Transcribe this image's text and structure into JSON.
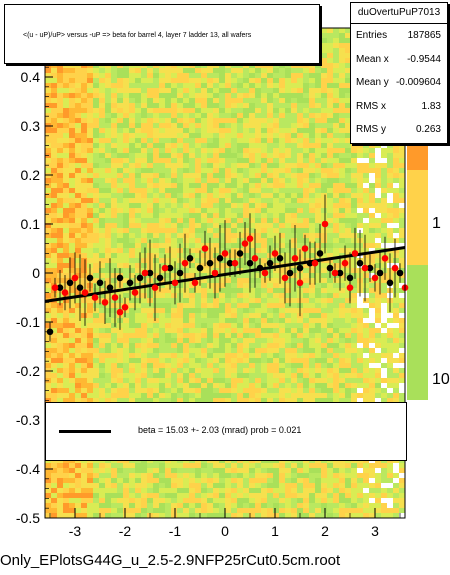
{
  "title": "<(u - uP)/uP> versus -uP => beta for barrel 4, layer 7 ladder 13, all wafers",
  "stats": {
    "name": "duOvertuPuP7013",
    "rows": [
      {
        "key": "Entries",
        "value": "187865"
      },
      {
        "key": "Mean x",
        "value": "-0.9544"
      },
      {
        "key": "Mean y",
        "value": "-0.009604"
      },
      {
        "key": "RMS x",
        "value": "1.83"
      },
      {
        "key": "RMS y",
        "value": "0.263"
      }
    ]
  },
  "legend": {
    "text": "beta =    15.03 +-  2.03 (mrad) prob = 0.021"
  },
  "footer": "Only_EPlotsG44G_u_2.5-2.9NFP25rCut0.5cm.root",
  "colors": {
    "fit_line": "#000000",
    "points_black": "#000000",
    "points_red": "#ff0000"
  },
  "chart_data": {
    "type": "scatter",
    "title": "<(u - uP)/uP> versus -uP => beta for barrel 4, layer 7 ladder 13, all wafers",
    "xlim": [
      -3.6,
      3.6
    ],
    "ylim": [
      -0.5,
      0.5
    ],
    "xticks": [
      "-3",
      "-2",
      "-1",
      "0",
      "1",
      "2",
      "3"
    ],
    "yticks": [
      "-0.5",
      "-0.4",
      "-0.3",
      "-0.2",
      "-0.1",
      "0",
      "0.1",
      "0.2",
      "0.3",
      "0.4"
    ],
    "colorbar_ticks": [
      "10",
      "1",
      "10"
    ],
    "fit_line": {
      "x": [
        -3.6,
        3.6
      ],
      "y": [
        -0.058,
        0.052
      ]
    },
    "series": [
      {
        "marker": "black",
        "points": [
          [
            -3.5,
            -0.12
          ],
          [
            -3.3,
            -0.03
          ],
          [
            -3.1,
            -0.02
          ],
          [
            -2.9,
            -0.03
          ],
          [
            -2.7,
            -0.01
          ],
          [
            -2.5,
            -0.02
          ],
          [
            -2.3,
            -0.03
          ],
          [
            -2.1,
            -0.01
          ],
          [
            -1.9,
            -0.02
          ],
          [
            -1.7,
            -0.01
          ],
          [
            -1.5,
            0.0
          ],
          [
            -1.3,
            -0.01
          ],
          [
            -1.1,
            0.01
          ],
          [
            -0.9,
            0.0
          ],
          [
            -0.7,
            0.03
          ],
          [
            -0.5,
            0.01
          ],
          [
            -0.3,
            0.02
          ],
          [
            -0.1,
            0.03
          ],
          [
            0.1,
            0.02
          ],
          [
            0.3,
            0.04
          ],
          [
            0.5,
            0.02
          ],
          [
            0.7,
            0.01
          ],
          [
            0.9,
            0.02
          ],
          [
            1.1,
            0.03
          ],
          [
            1.3,
            0.0
          ],
          [
            1.5,
            0.01
          ],
          [
            1.7,
            0.02
          ],
          [
            1.9,
            0.04
          ],
          [
            2.1,
            0.01
          ],
          [
            2.3,
            0.0
          ],
          [
            2.5,
            -0.01
          ],
          [
            2.7,
            0.02
          ],
          [
            2.9,
            0.01
          ],
          [
            3.1,
            0.0
          ],
          [
            3.3,
            -0.02
          ],
          [
            3.5,
            0.0
          ]
        ]
      },
      {
        "marker": "red",
        "points": [
          [
            -3.4,
            -0.03
          ],
          [
            -3.2,
            -0.04
          ],
          [
            -3.0,
            -0.01
          ],
          [
            -2.8,
            -0.04
          ],
          [
            -2.6,
            -0.05
          ],
          [
            -2.4,
            -0.06
          ],
          [
            -2.2,
            -0.05
          ],
          [
            -2.0,
            -0.07
          ],
          [
            -1.8,
            -0.04
          ],
          [
            -1.6,
            0.0
          ],
          [
            -1.4,
            -0.03
          ],
          [
            -1.2,
            0.01
          ],
          [
            -1.0,
            -0.02
          ],
          [
            -0.8,
            0.02
          ],
          [
            -0.6,
            -0.02
          ],
          [
            -0.4,
            0.05
          ],
          [
            -0.2,
            0.0
          ],
          [
            0.0,
            0.04
          ],
          [
            0.2,
            0.02
          ],
          [
            0.4,
            0.06
          ],
          [
            0.6,
            0.03
          ],
          [
            0.8,
            0.0
          ],
          [
            1.0,
            0.04
          ],
          [
            1.2,
            -0.01
          ],
          [
            1.4,
            0.03
          ],
          [
            1.6,
            0.05
          ],
          [
            1.8,
            0.02
          ],
          [
            2.0,
            0.1
          ],
          [
            2.2,
            0.0
          ],
          [
            2.4,
            0.02
          ],
          [
            2.6,
            0.04
          ],
          [
            2.8,
            0.01
          ],
          [
            3.0,
            -0.01
          ],
          [
            3.2,
            0.03
          ],
          [
            3.4,
            0.01
          ],
          [
            3.6,
            -0.03
          ],
          [
            -2.1,
            -0.08
          ],
          [
            0.5,
            0.07
          ],
          [
            1.5,
            -0.02
          ],
          [
            2.5,
            -0.03
          ]
        ]
      }
    ]
  }
}
